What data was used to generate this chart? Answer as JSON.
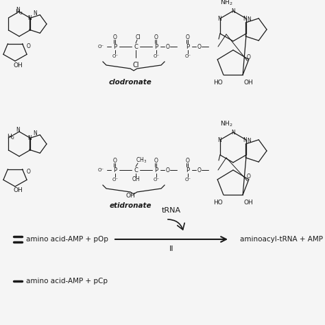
{
  "bg_color": "#f5f5f5",
  "fig_width": 4.74,
  "fig_height": 4.74,
  "dpi": 100,
  "colors": {
    "black": "#1a1a1a"
  },
  "clodronate_label": "clodronate",
  "etidronate_label": "etidronate",
  "reaction_trna_label": "tRNA",
  "reaction_II_label": "II",
  "reaction_left": "amino acid-AMP + pOp",
  "reaction_right": "aminoacyl-tRNA + AMP",
  "reaction_bottom": "amino acid-AMP + pCp"
}
